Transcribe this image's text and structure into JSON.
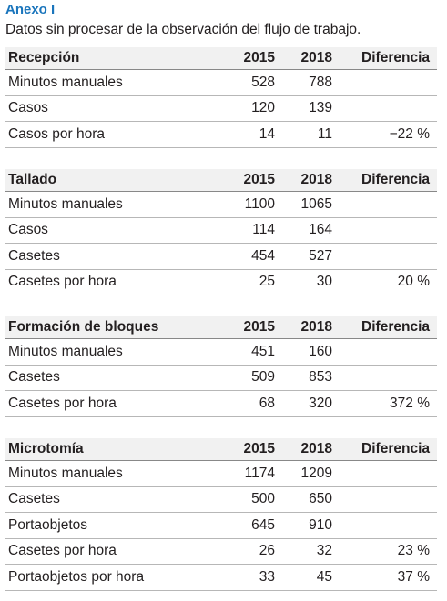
{
  "header": {
    "title": "Anexo I",
    "subtitle": "Datos sin procesar de la observación del flujo de trabajo."
  },
  "tables": [
    {
      "columns": [
        "Recepción",
        "2015",
        "2018",
        "Diferencia"
      ],
      "rows": [
        [
          "Minutos manuales",
          528,
          788
        ],
        [
          "Casos",
          120,
          139
        ],
        [
          "Casos por hora",
          14,
          11,
          "−22 %"
        ]
      ]
    },
    {
      "columns": [
        "Tallado",
        "2015",
        "2018",
        "Diferencia"
      ],
      "rows": [
        [
          "Minutos manuales",
          1100,
          1065
        ],
        [
          "Casos",
          114,
          164
        ],
        [
          "Casetes",
          454,
          527
        ],
        [
          "Casetes por hora",
          25,
          30,
          "20 %"
        ]
      ]
    },
    {
      "columns": [
        "Formación de bloques",
        "2015",
        "2018",
        "Diferencia"
      ],
      "rows": [
        [
          "Minutos manuales",
          451,
          160
        ],
        [
          "Casetes",
          509,
          853
        ],
        [
          "Casetes por hora",
          68,
          320,
          "372 %"
        ]
      ]
    },
    {
      "columns": [
        "Microtomía",
        "2015",
        "2018",
        "Diferencia"
      ],
      "rows": [
        [
          "Minutos manuales",
          1174,
          1209
        ],
        [
          "Casetes",
          500,
          650
        ],
        [
          "Portaobjetos",
          645,
          910
        ],
        [
          "Casetes por hora",
          26,
          32,
          "23 %"
        ],
        [
          "Portaobjetos por hora",
          33,
          45,
          "37 %"
        ]
      ]
    }
  ]
}
